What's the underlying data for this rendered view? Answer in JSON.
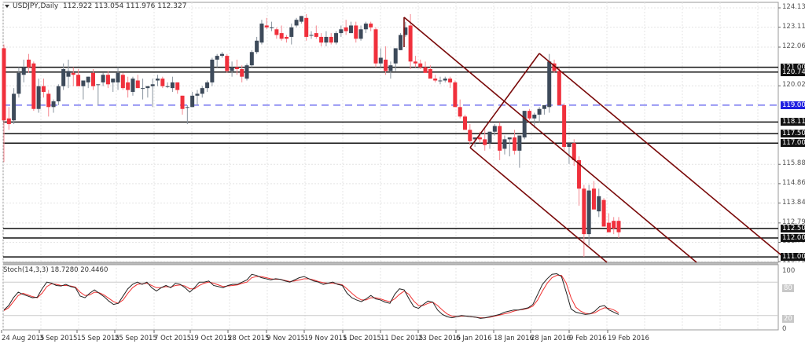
{
  "header": {
    "symbol": "USDJPY,Daily",
    "ohlc": "112.922 113.054 111.976 112.327"
  },
  "indicator": {
    "label": "Stoch(14,3,3) 18.7280 20.4460"
  },
  "colors": {
    "bull": "#3d4a5a",
    "bear": "#f0303c",
    "level_line": "#111111",
    "support_dashed": "#7878f0",
    "channel": "#7a0a0a",
    "stoch_main": "#222222",
    "stoch_signal": "#f03030",
    "grid": "#e4e4e4"
  },
  "chart_data": {
    "type": "candlestick",
    "title": "USDJPY,Daily",
    "ohlc_current": {
      "open": 112.922,
      "high": 113.054,
      "low": 111.976,
      "close": 112.327
    },
    "y_axis_ticks": [
      "124.130",
      "123.110",
      "122.060",
      "120.020",
      "115.880",
      "114.860",
      "113.840",
      "112.790",
      "111.770",
      "110.750"
    ],
    "price_levels": [
      {
        "label": "121.000",
        "value": 121.0,
        "style": "solid"
      },
      {
        "label": "120.745",
        "value": 120.745,
        "style": "solid"
      },
      {
        "label": "119.000",
        "value": 119.0,
        "style": "dashed-blue"
      },
      {
        "label": "118.110",
        "value": 118.11,
        "style": "solid"
      },
      {
        "label": "117.500",
        "value": 117.5,
        "style": "solid"
      },
      {
        "label": "117.000",
        "value": 117.0,
        "style": "solid"
      },
      {
        "label": "112.500",
        "value": 112.5,
        "style": "solid"
      },
      {
        "label": "112.000",
        "value": 112.0,
        "style": "solid"
      },
      {
        "label": "111.000",
        "value": 111.0,
        "style": "solid"
      }
    ],
    "x_axis_labels": [
      "24 Aug 2015",
      "3 Sep 2015",
      "15 Sep 2015",
      "25 Sep 2015",
      "7 Oct 2015",
      "19 Oct 2015",
      "28 Oct 2015",
      "9 Nov 2015",
      "19 Nov 2015",
      "1 Dec 2015",
      "11 Dec 2015",
      "23 Dec 2015",
      "6 Jan 2016",
      "18 Jan 2016",
      "28 Jan 2016",
      "9 Feb 2016",
      "19 Feb 2016"
    ],
    "candles": [
      [
        122.0,
        122.2,
        116.0,
        118.2
      ],
      [
        118.3,
        118.9,
        117.7,
        118.0
      ],
      [
        118.2,
        119.9,
        118.0,
        119.6
      ],
      [
        119.6,
        121.0,
        119.4,
        120.7
      ],
      [
        120.6,
        121.4,
        120.2,
        121.0
      ],
      [
        121.4,
        121.7,
        120.7,
        121.0
      ],
      [
        121.2,
        121.3,
        118.7,
        118.8
      ],
      [
        118.8,
        120.4,
        118.6,
        120.0
      ],
      [
        120.0,
        120.4,
        119.4,
        119.7
      ],
      [
        119.6,
        119.8,
        118.4,
        118.9
      ],
      [
        118.9,
        119.3,
        118.6,
        119.2
      ],
      [
        119.2,
        120.1,
        119.0,
        120.0
      ],
      [
        120.0,
        121.2,
        119.8,
        120.9
      ],
      [
        120.5,
        121.4,
        119.9,
        120.8
      ],
      [
        120.7,
        121.0,
        120.0,
        120.6
      ],
      [
        120.6,
        120.9,
        120.2,
        120.0
      ],
      [
        120.0,
        120.3,
        119.3,
        120.3
      ],
      [
        120.2,
        120.5,
        119.9,
        120.5
      ],
      [
        120.7,
        120.9,
        119.8,
        120.0
      ],
      [
        120.1,
        120.1,
        119.0,
        120.1
      ],
      [
        120.2,
        120.7,
        120.0,
        120.6
      ],
      [
        120.6,
        120.8,
        119.9,
        120.1
      ],
      [
        120.2,
        120.4,
        119.7,
        120.4
      ],
      [
        120.2,
        121.0,
        119.8,
        120.7
      ],
      [
        120.6,
        120.7,
        119.8,
        119.9
      ],
      [
        120.2,
        120.5,
        119.4,
        119.8
      ],
      [
        119.7,
        120.5,
        119.5,
        120.4
      ],
      [
        120.3,
        120.6,
        120.0,
        119.9
      ],
      [
        119.9,
        120.4,
        119.3,
        119.9
      ],
      [
        119.9,
        120.0,
        119.4,
        120.0
      ],
      [
        120.0,
        120.4,
        118.9,
        120.1
      ],
      [
        120.3,
        120.6,
        120.0,
        120.4
      ],
      [
        120.4,
        120.5,
        119.9,
        120.0
      ],
      [
        120.0,
        120.2,
        119.9,
        120.0
      ],
      [
        119.9,
        120.5,
        119.7,
        120.2
      ],
      [
        120.2,
        120.2,
        119.6,
        119.8
      ],
      [
        119.5,
        119.5,
        118.5,
        118.8
      ],
      [
        118.9,
        119.0,
        118.0,
        118.9
      ],
      [
        118.9,
        119.7,
        118.9,
        119.5
      ],
      [
        119.5,
        119.8,
        119.0,
        119.6
      ],
      [
        119.6,
        120.0,
        119.4,
        119.9
      ],
      [
        119.9,
        120.3,
        119.7,
        120.2
      ],
      [
        120.2,
        121.5,
        120.0,
        121.4
      ],
      [
        121.4,
        121.7,
        121.0,
        121.6
      ],
      [
        121.6,
        121.8,
        121.5,
        121.7
      ],
      [
        121.6,
        121.7,
        120.7,
        120.8
      ],
      [
        120.8,
        121.3,
        120.5,
        121.0
      ],
      [
        121.0,
        121.4,
        120.6,
        120.9
      ],
      [
        120.9,
        121.1,
        120.2,
        120.5
      ],
      [
        120.4,
        121.2,
        120.3,
        121.1
      ],
      [
        121.1,
        121.9,
        121.0,
        121.8
      ],
      [
        121.8,
        122.6,
        121.7,
        122.4
      ],
      [
        122.3,
        123.5,
        122.2,
        123.3
      ],
      [
        123.2,
        123.6,
        123.0,
        123.1
      ],
      [
        123.1,
        123.4,
        122.9,
        123.1
      ],
      [
        123.0,
        123.1,
        122.5,
        122.7
      ],
      [
        122.8,
        123.2,
        122.4,
        122.5
      ],
      [
        122.6,
        122.7,
        122.3,
        122.5
      ],
      [
        122.6,
        123.3,
        122.2,
        123.1
      ],
      [
        123.2,
        123.6,
        123.1,
        123.5
      ],
      [
        123.4,
        123.7,
        123.3,
        123.7
      ],
      [
        123.6,
        123.8,
        122.4,
        122.6
      ],
      [
        122.7,
        122.9,
        122.5,
        122.7
      ],
      [
        122.8,
        123.2,
        122.5,
        122.6
      ],
      [
        122.6,
        122.8,
        122.1,
        122.3
      ],
      [
        122.3,
        122.9,
        122.1,
        122.6
      ],
      [
        122.6,
        122.8,
        122.2,
        122.3
      ],
      [
        122.3,
        122.9,
        122.2,
        122.8
      ],
      [
        122.8,
        123.2,
        122.6,
        123.0
      ],
      [
        123.1,
        123.5,
        122.7,
        122.9
      ],
      [
        122.8,
        123.4,
        122.8,
        123.2
      ],
      [
        123.2,
        123.4,
        122.3,
        122.5
      ],
      [
        122.5,
        123.2,
        122.4,
        123.0
      ],
      [
        123.0,
        123.4,
        122.8,
        123.3
      ],
      [
        123.3,
        123.4,
        122.9,
        123.1
      ],
      [
        123.0,
        123.1,
        121.0,
        121.2
      ],
      [
        121.2,
        122.0,
        121.0,
        121.5
      ],
      [
        121.4,
        122.1,
        120.6,
        120.8
      ],
      [
        120.8,
        121.3,
        120.4,
        121.1
      ],
      [
        121.2,
        122.0,
        120.8,
        122.0
      ],
      [
        121.9,
        122.8,
        121.9,
        122.7
      ],
      [
        122.7,
        123.4,
        122.6,
        123.1
      ],
      [
        123.2,
        123.8,
        120.9,
        121.3
      ],
      [
        121.3,
        121.6,
        121.0,
        121.2
      ],
      [
        121.2,
        121.4,
        120.9,
        121.0
      ],
      [
        121.0,
        121.3,
        120.8,
        120.7
      ],
      [
        120.9,
        121.1,
        120.5,
        120.4
      ],
      [
        120.4,
        120.6,
        120.2,
        120.3
      ],
      [
        120.3,
        120.5,
        120.1,
        120.3
      ],
      [
        120.3,
        120.5,
        120.2,
        120.4
      ],
      [
        120.4,
        120.5,
        119.9,
        120.2
      ],
      [
        120.2,
        120.3,
        119.0,
        118.9
      ],
      [
        118.9,
        119.3,
        118.3,
        118.4
      ],
      [
        118.4,
        118.5,
        117.8,
        117.7
      ],
      [
        117.7,
        118.0,
        116.9,
        117.1
      ],
      [
        117.2,
        117.3,
        116.8,
        117.3
      ],
      [
        117.3,
        117.6,
        117.0,
        117.2
      ],
      [
        117.2,
        117.8,
        116.6,
        116.9
      ],
      [
        117.0,
        117.6,
        116.7,
        117.6
      ],
      [
        117.6,
        118.0,
        117.4,
        117.9
      ],
      [
        117.9,
        118.1,
        116.1,
        116.6
      ],
      [
        116.7,
        117.4,
        116.4,
        117.2
      ],
      [
        117.2,
        117.3,
        116.3,
        117.3
      ],
      [
        117.3,
        117.7,
        116.4,
        116.6
      ],
      [
        116.6,
        117.3,
        115.7,
        117.4
      ],
      [
        117.3,
        118.6,
        117.2,
        118.7
      ],
      [
        118.7,
        118.8,
        118.2,
        118.3
      ],
      [
        118.3,
        118.6,
        117.8,
        118.5
      ],
      [
        118.5,
        118.9,
        118.1,
        118.8
      ],
      [
        118.8,
        119.0,
        118.5,
        119.0
      ],
      [
        118.9,
        121.7,
        118.6,
        121.3
      ],
      [
        121.2,
        121.4,
        120.7,
        120.8
      ],
      [
        120.8,
        121.0,
        119.0,
        119.0
      ],
      [
        119.0,
        119.1,
        116.6,
        116.8
      ],
      [
        116.8,
        117.0,
        115.9,
        117.0
      ],
      [
        117.0,
        117.2,
        115.8,
        116.1
      ],
      [
        116.1,
        116.3,
        113.7,
        114.6
      ],
      [
        114.6,
        114.8,
        111.0,
        112.2
      ],
      [
        112.2,
        114.8,
        111.6,
        114.5
      ],
      [
        114.6,
        115.0,
        113.8,
        113.5
      ],
      [
        113.4,
        114.6,
        113.1,
        114.2
      ],
      [
        114.0,
        114.1,
        112.7,
        112.6
      ],
      [
        112.8,
        113.3,
        112.3,
        112.3
      ],
      [
        112.9,
        113.1,
        112.2,
        112.5
      ],
      [
        112.9,
        113.1,
        112.0,
        112.3
      ]
    ],
    "channels": [
      {
        "name": "outer-channel-upper",
        "points": [
          [
            514,
            22
          ],
          [
            886,
            334
          ]
        ]
      },
      {
        "name": "middle-channel-line",
        "points": [
          [
            598,
            188
          ],
          [
            686,
            68
          ]
        ]
      },
      {
        "name": "middle-channel-line-2",
        "points": [
          [
            686,
            68
          ],
          [
            1000,
            330
          ]
        ]
      },
      {
        "name": "lower-channel",
        "points": [
          [
            598,
            188
          ],
          [
            772,
            334
          ]
        ]
      }
    ],
    "stochastic": {
      "params": "14,3,3",
      "main": 18.728,
      "signal": 20.446,
      "levels": [
        80,
        20
      ],
      "ylim": [
        0,
        100
      ]
    }
  }
}
